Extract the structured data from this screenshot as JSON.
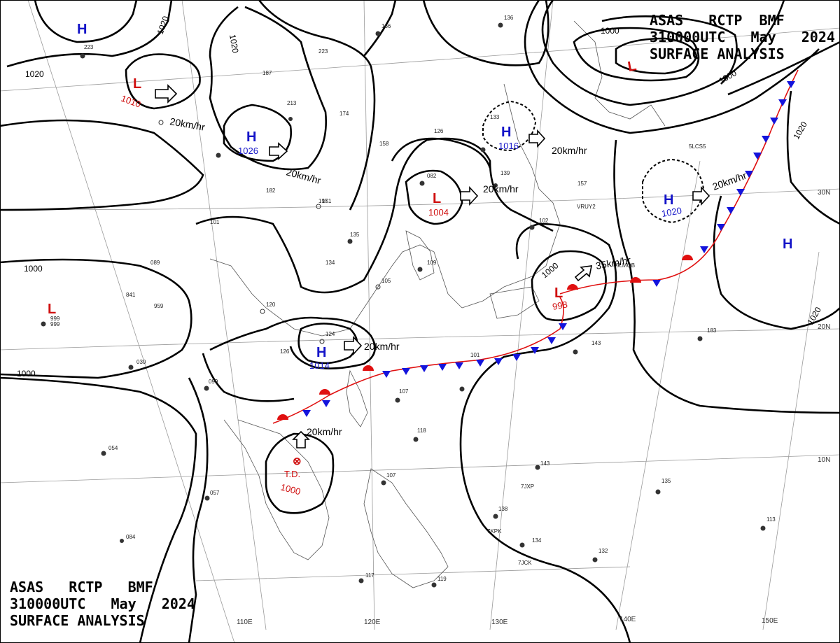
{
  "titles": {
    "top": [
      "ASAS   RCTP  BMF",
      "310000UTC   May   2024",
      "SURFACE ANALYSIS"
    ],
    "bottom": [
      "ASAS   RCTP   BMF",
      "310000UTC   May   2024",
      "SURFACE ANALYSIS"
    ]
  },
  "colors": {
    "high": "#1414c8",
    "low": "#d01010",
    "warm_front": "#e01010",
    "cold_front": "#1414dc",
    "isobar": "#000000"
  },
  "pressure_centers": [
    {
      "type": "H",
      "value": ""
    },
    {
      "type": "L",
      "value": "1010"
    },
    {
      "type": "H",
      "value": "1026"
    },
    {
      "type": "L",
      "value": "1004"
    },
    {
      "type": "H",
      "value": "1016"
    },
    {
      "type": "L",
      "value": ""
    },
    {
      "type": "H",
      "value": "1020"
    },
    {
      "type": "H",
      "value": ""
    },
    {
      "type": "L",
      "value": "998"
    },
    {
      "type": "H",
      "value": "1014"
    },
    {
      "type": "L",
      "value": "999"
    },
    {
      "type": "T.D.",
      "value": "1000"
    }
  ],
  "isobar_labels": {
    "l1": "1020",
    "l2": "1020",
    "l3": "1020",
    "l4": "1000",
    "l5": "1000",
    "l6": "1000",
    "l7": "1000",
    "l8": "1020",
    "l9": "1020",
    "l10": "1000"
  },
  "motion_labels": {
    "m1": "20km/hr",
    "m2": "20km/hr",
    "m3": "20km/hr",
    "m4": "20km/hr",
    "m5": "20km/hr",
    "m6": "35km/hr",
    "m7": "20km/hr",
    "m8": "20km/hr"
  },
  "axis_labels": {
    "lon": [
      "110E",
      "120E",
      "130E",
      "140E",
      "150E"
    ],
    "lat": [
      "30N",
      "20N",
      "10N"
    ]
  },
  "ship_ids": [
    "VRUY2",
    "5LMQB",
    "7JXP",
    "7KPK",
    "7JCK",
    "5LCS5"
  ]
}
